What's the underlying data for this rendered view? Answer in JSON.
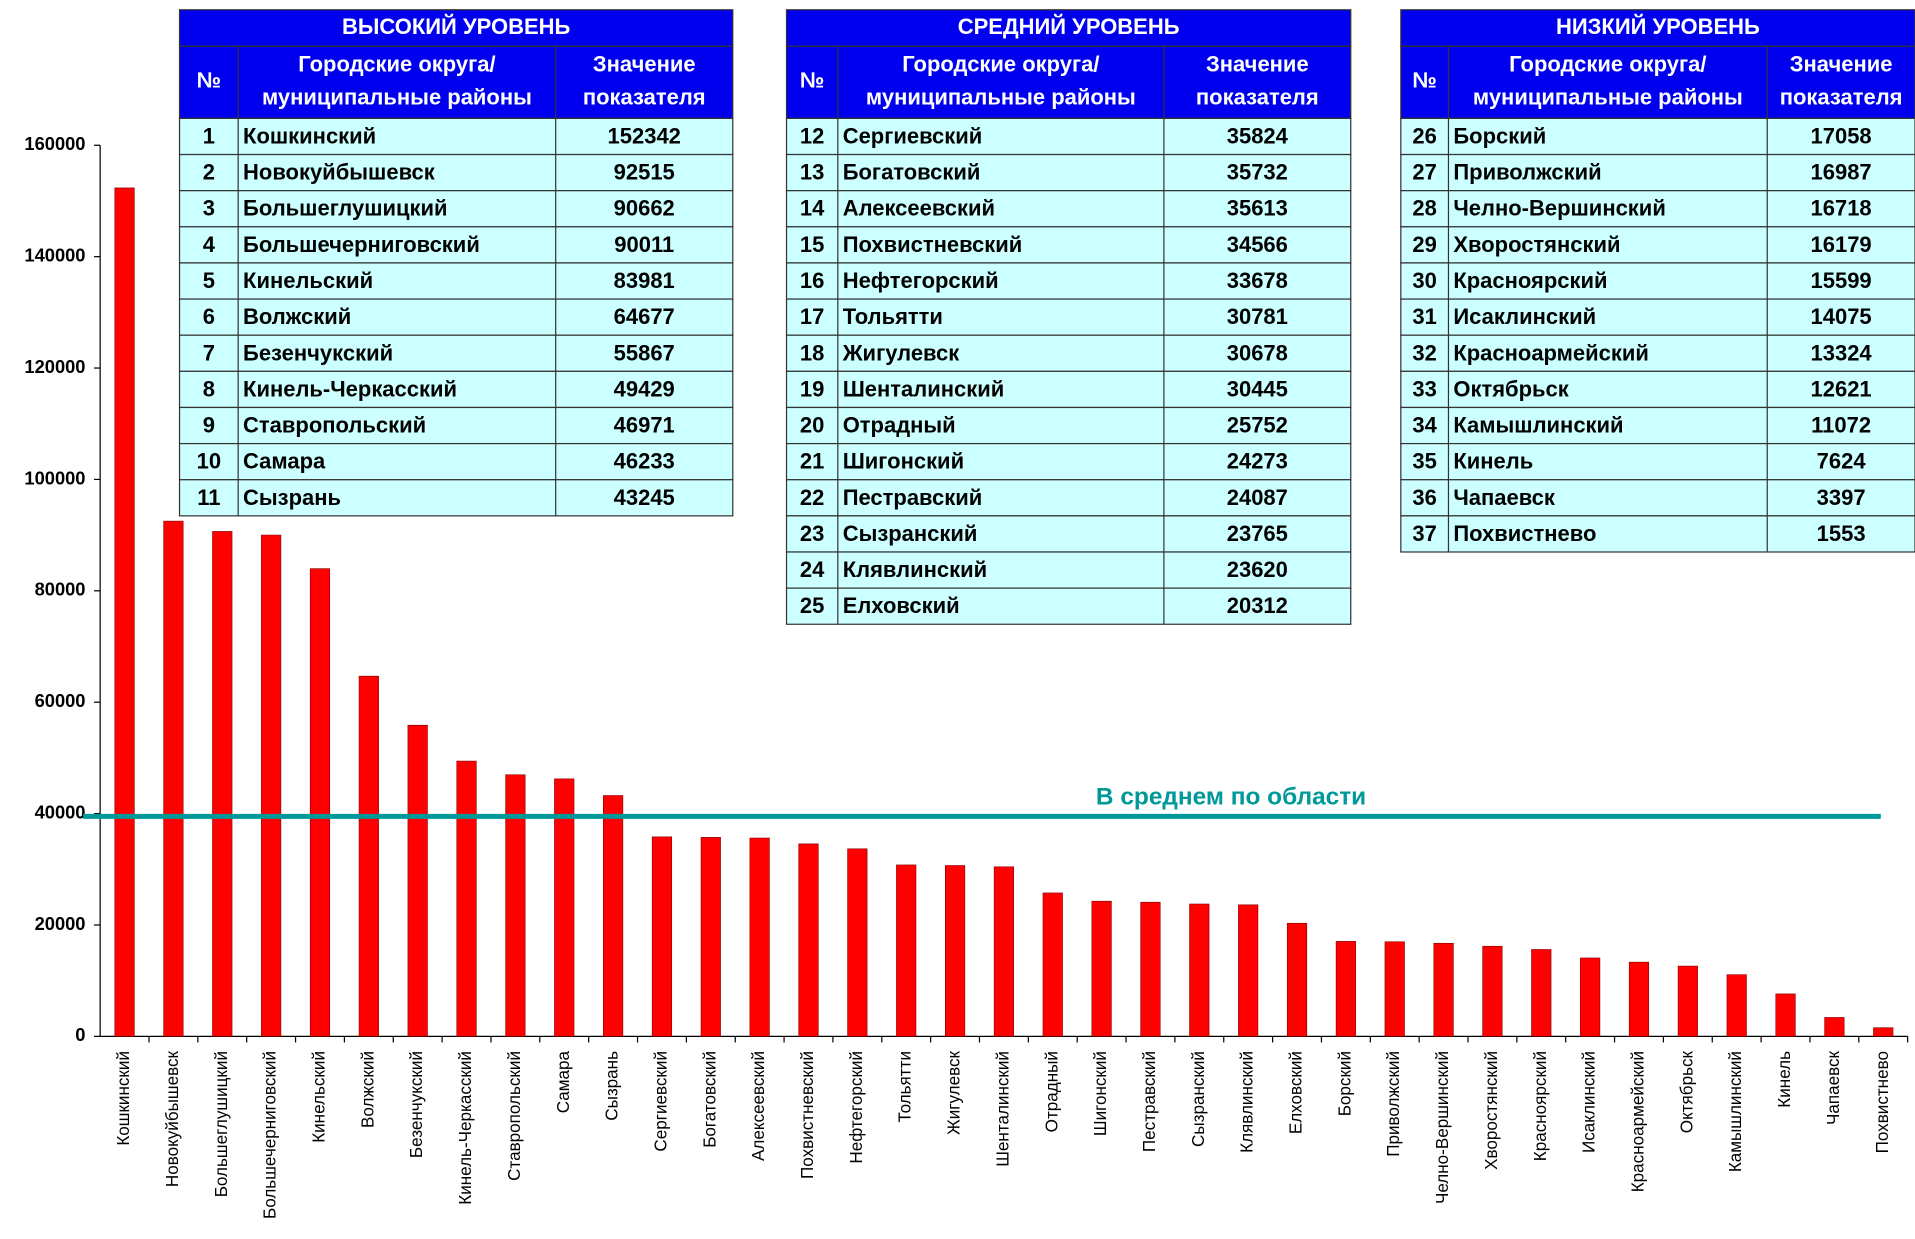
{
  "chart_data": {
    "type": "bar",
    "categories": [
      "Кошкинский",
      "Новокуйбышевск",
      "Большеглушицкий",
      "Большечерниговский",
      "Кинельский",
      "Волжский",
      "Безенчукский",
      "Кинель-Черкасский",
      "Ставропольский",
      "Самара",
      "Сызрань",
      "Сергиевский",
      "Богатовский",
      "Алексеевский",
      "Похвистневский",
      "Нефтегорский",
      "Тольятти",
      "Жигулевск",
      "Шенталинский",
      "Отрадный",
      "Шигонский",
      "Пестравский",
      "Сызранский",
      "Клявлинский",
      "Елховский",
      "Борский",
      "Приволжский",
      "Челно-Вершинский",
      "Хворостянский",
      "Красноярский",
      "Исаклинский",
      "Красноармейский",
      "Октябрьск",
      "Камышлинский",
      "Кинель",
      "Чапаевск",
      "Похвистнево"
    ],
    "values": [
      152342,
      92515,
      90662,
      90011,
      83981,
      64677,
      55867,
      49429,
      46971,
      46233,
      43245,
      35824,
      35732,
      35613,
      34566,
      33678,
      30781,
      30678,
      30445,
      25752,
      24273,
      24087,
      23765,
      23620,
      20312,
      17058,
      16987,
      16718,
      16179,
      15599,
      14075,
      13324,
      12621,
      11072,
      7624,
      3397,
      1553
    ],
    "color": "#ff0000",
    "ylim": [
      0,
      160000
    ],
    "yticks": [
      0,
      20000,
      40000,
      60000,
      80000,
      100000,
      120000,
      140000,
      160000
    ],
    "average": {
      "label": "В среднем по области",
      "value": 39500,
      "color": "#009999"
    }
  },
  "headers": [
    "№",
    "Городские округа/",
    "муниципальные районы",
    "Значение",
    "показателя"
  ],
  "tables": [
    {
      "title": "ВЫСОКИЙ УРОВЕНЬ",
      "numbers": [
        1,
        2,
        3,
        4,
        5,
        6,
        7,
        8,
        9,
        10,
        11
      ]
    },
    {
      "title": "СРЕДНИЙ УРОВЕНЬ",
      "numbers": [
        12,
        13,
        14,
        15,
        16,
        17,
        18,
        19,
        20,
        21,
        22,
        23,
        24,
        25
      ]
    },
    {
      "title": "НИЗКИЙ УРОВЕНЬ",
      "numbers": [
        26,
        27,
        28,
        29,
        30,
        31,
        32,
        33,
        34,
        35,
        36,
        37
      ]
    }
  ]
}
